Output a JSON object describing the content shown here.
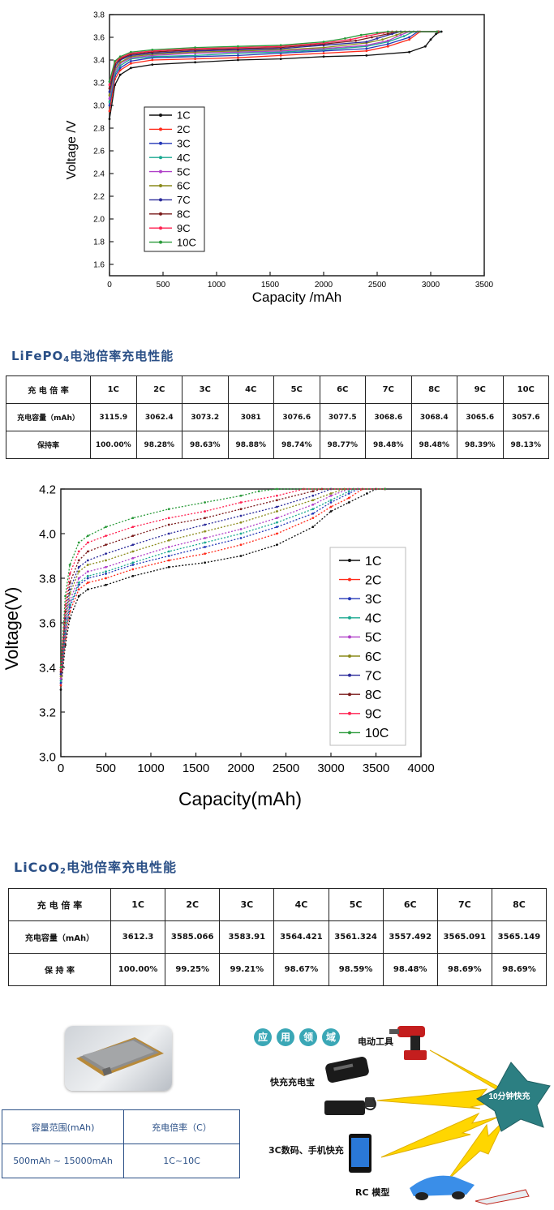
{
  "charts": {
    "lifepo4": {
      "xlabel": "Capacity /mAh",
      "ylabel": "Voltage /V",
      "xticks": [
        "0",
        "500",
        "1000",
        "1500",
        "2000",
        "2500",
        "3000",
        "3500"
      ],
      "yticks": [
        "1.6",
        "1.8",
        "2.0",
        "2.2",
        "2.4",
        "2.6",
        "2.8",
        "3.0",
        "3.2",
        "3.4",
        "3.6",
        "3.8"
      ],
      "legend": [
        "1C",
        "2C",
        "3C",
        "4C",
        "5C",
        "6C",
        "7C",
        "8C",
        "9C",
        "10C"
      ]
    },
    "licoo2": {
      "xlabel": "Capacity(mAh)",
      "ylabel": "Voltage(V)",
      "xticks": [
        "0",
        "500",
        "1000",
        "1500",
        "2000",
        "2500",
        "3000",
        "3500",
        "4000"
      ],
      "yticks": [
        "3.0",
        "3.2",
        "3.4",
        "3.6",
        "3.8",
        "4.0",
        "4.2"
      ],
      "legend": [
        "1C",
        "2C",
        "3C",
        "4C",
        "5C",
        "6C",
        "7C",
        "8C",
        "9C",
        "10C"
      ]
    }
  },
  "series_colors": [
    "#111111",
    "#ff2a1a",
    "#2438b8",
    "#1aa890",
    "#b040c8",
    "#8a8a1a",
    "#2a2a9a",
    "#7a1a1a",
    "#ff2050",
    "#2a9a3a"
  ],
  "chart_data": [
    {
      "type": "line",
      "xlabel": "Capacity /mAh",
      "ylabel": "Voltage /V",
      "xlim": [
        0,
        3500
      ],
      "ylim": [
        1.5,
        3.8
      ],
      "grid": false,
      "legend_position": "left",
      "series": [
        {
          "name": "1C",
          "x": [
            0,
            50,
            100,
            200,
            400,
            800,
            1200,
            1600,
            2000,
            2400,
            2800,
            2950,
            3000,
            3050,
            3100
          ],
          "y": [
            2.88,
            3.18,
            3.27,
            3.33,
            3.36,
            3.38,
            3.4,
            3.41,
            3.43,
            3.44,
            3.47,
            3.52,
            3.58,
            3.63,
            3.65
          ]
        },
        {
          "name": "2C",
          "x": [
            0,
            50,
            100,
            200,
            400,
            800,
            1200,
            1600,
            2000,
            2400,
            2600,
            2800,
            2900,
            3060
          ],
          "y": [
            2.95,
            3.23,
            3.31,
            3.37,
            3.4,
            3.41,
            3.42,
            3.44,
            3.46,
            3.48,
            3.52,
            3.58,
            3.65,
            3.65
          ]
        },
        {
          "name": "3C",
          "x": [
            0,
            50,
            100,
            200,
            400,
            800,
            1200,
            1600,
            2000,
            2400,
            2600,
            2800,
            2880,
            3070
          ],
          "y": [
            3.0,
            3.26,
            3.33,
            3.39,
            3.42,
            3.43,
            3.44,
            3.46,
            3.48,
            3.5,
            3.54,
            3.6,
            3.65,
            3.65
          ]
        },
        {
          "name": "4C",
          "x": [
            0,
            50,
            100,
            200,
            400,
            800,
            1200,
            1600,
            2000,
            2400,
            2600,
            2750,
            2840,
            3080
          ],
          "y": [
            3.03,
            3.28,
            3.35,
            3.41,
            3.43,
            3.44,
            3.46,
            3.47,
            3.49,
            3.52,
            3.56,
            3.61,
            3.65,
            3.65
          ]
        },
        {
          "name": "5C",
          "x": [
            0,
            50,
            100,
            200,
            400,
            800,
            1200,
            1600,
            2000,
            2400,
            2600,
            2720,
            2800,
            3075
          ],
          "y": [
            3.06,
            3.3,
            3.37,
            3.42,
            3.44,
            3.46,
            3.47,
            3.48,
            3.5,
            3.53,
            3.57,
            3.62,
            3.65,
            3.65
          ]
        },
        {
          "name": "6C",
          "x": [
            0,
            50,
            100,
            200,
            400,
            800,
            1200,
            1600,
            2000,
            2400,
            2550,
            2680,
            2760,
            3075
          ],
          "y": [
            3.09,
            3.32,
            3.38,
            3.43,
            3.45,
            3.47,
            3.48,
            3.49,
            3.51,
            3.55,
            3.58,
            3.62,
            3.65,
            3.65
          ]
        },
        {
          "name": "7C",
          "x": [
            0,
            50,
            100,
            200,
            400,
            800,
            1200,
            1600,
            2000,
            2400,
            2500,
            2640,
            2720,
            3070
          ],
          "y": [
            3.12,
            3.34,
            3.4,
            3.44,
            3.46,
            3.48,
            3.49,
            3.5,
            3.53,
            3.56,
            3.59,
            3.63,
            3.65,
            3.65
          ]
        },
        {
          "name": "8C",
          "x": [
            0,
            50,
            100,
            200,
            400,
            800,
            1200,
            1600,
            2000,
            2300,
            2450,
            2600,
            2680,
            3070
          ],
          "y": [
            3.15,
            3.36,
            3.41,
            3.45,
            3.47,
            3.49,
            3.5,
            3.51,
            3.54,
            3.57,
            3.6,
            3.63,
            3.65,
            3.65
          ]
        },
        {
          "name": "9C",
          "x": [
            0,
            50,
            100,
            200,
            400,
            800,
            1200,
            1600,
            2000,
            2250,
            2400,
            2560,
            2640,
            3065
          ],
          "y": [
            3.18,
            3.38,
            3.42,
            3.46,
            3.48,
            3.5,
            3.51,
            3.52,
            3.55,
            3.58,
            3.61,
            3.64,
            3.65,
            3.65
          ]
        },
        {
          "name": "10C",
          "x": [
            0,
            50,
            100,
            200,
            400,
            800,
            1200,
            1600,
            2000,
            2200,
            2350,
            2500,
            2600,
            3060
          ],
          "y": [
            3.21,
            3.39,
            3.43,
            3.47,
            3.49,
            3.51,
            3.52,
            3.53,
            3.56,
            3.59,
            3.62,
            3.64,
            3.65,
            3.65
          ]
        }
      ]
    },
    {
      "type": "table",
      "title": "LiFePO₄电池倍率充电性能",
      "headers": [
        "充 电 倍 率",
        "1C",
        "2C",
        "3C",
        "4C",
        "5C",
        "6C",
        "7C",
        "8C",
        "9C",
        "10C"
      ],
      "rows": [
        [
          "充电容量（mAh）",
          "3115.9",
          "3062.4",
          "3073.2",
          "3081",
          "3076.6",
          "3077.5",
          "3068.6",
          "3068.4",
          "3065.6",
          "3057.6"
        ],
        [
          "保持率",
          "100.00%",
          "98.28%",
          "98.63%",
          "98.88%",
          "98.74%",
          "98.77%",
          "98.48%",
          "98.48%",
          "98.39%",
          "98.13%"
        ]
      ]
    },
    {
      "type": "line",
      "xlabel": "Capacity(mAh)",
      "ylabel": "Voltage(V)",
      "xlim": [
        0,
        4000
      ],
      "ylim": [
        3.0,
        4.2
      ],
      "grid": false,
      "legend_position": "right",
      "series": [
        {
          "name": "1C",
          "x": [
            0,
            50,
            100,
            200,
            300,
            500,
            800,
            1200,
            1600,
            2000,
            2400,
            2800,
            3000,
            3200,
            3400,
            3500,
            3600
          ],
          "y": [
            3.3,
            3.5,
            3.62,
            3.72,
            3.75,
            3.77,
            3.81,
            3.85,
            3.87,
            3.9,
            3.95,
            4.03,
            4.1,
            4.14,
            4.18,
            4.2,
            4.2
          ]
        },
        {
          "name": "2C",
          "x": [
            0,
            50,
            100,
            200,
            300,
            500,
            800,
            1200,
            1600,
            2000,
            2400,
            2800,
            3000,
            3200,
            3350,
            3600
          ],
          "y": [
            3.32,
            3.53,
            3.65,
            3.75,
            3.78,
            3.8,
            3.84,
            3.88,
            3.91,
            3.95,
            4.0,
            4.07,
            4.12,
            4.16,
            4.2,
            4.2
          ]
        },
        {
          "name": "3C",
          "x": [
            0,
            50,
            100,
            200,
            300,
            500,
            800,
            1200,
            1600,
            2000,
            2400,
            2800,
            3000,
            3200,
            3300,
            3600
          ],
          "y": [
            3.33,
            3.55,
            3.67,
            3.77,
            3.8,
            3.82,
            3.86,
            3.9,
            3.94,
            3.98,
            4.03,
            4.09,
            4.14,
            4.18,
            4.2,
            4.2
          ]
        },
        {
          "name": "4C",
          "x": [
            0,
            50,
            100,
            200,
            300,
            500,
            800,
            1200,
            1600,
            2000,
            2400,
            2800,
            3000,
            3200,
            3250,
            3600
          ],
          "y": [
            3.34,
            3.56,
            3.68,
            3.78,
            3.81,
            3.83,
            3.87,
            3.92,
            3.96,
            4.0,
            4.05,
            4.11,
            4.15,
            4.19,
            4.2,
            4.2
          ]
        },
        {
          "name": "5C",
          "x": [
            0,
            50,
            100,
            200,
            300,
            500,
            800,
            1200,
            1600,
            2000,
            2400,
            2800,
            3000,
            3200,
            3600
          ],
          "y": [
            3.35,
            3.58,
            3.7,
            3.8,
            3.83,
            3.85,
            3.89,
            3.94,
            3.98,
            4.02,
            4.07,
            4.13,
            4.17,
            4.2,
            4.2
          ]
        },
        {
          "name": "6C",
          "x": [
            0,
            50,
            100,
            200,
            300,
            500,
            800,
            1200,
            1600,
            2000,
            2400,
            2800,
            3000,
            3150,
            3600
          ],
          "y": [
            3.36,
            3.6,
            3.73,
            3.83,
            3.86,
            3.88,
            3.92,
            3.97,
            4.01,
            4.05,
            4.1,
            4.15,
            4.18,
            4.2,
            4.2
          ]
        },
        {
          "name": "7C",
          "x": [
            0,
            50,
            100,
            200,
            300,
            500,
            800,
            1200,
            1600,
            2000,
            2400,
            2800,
            3000,
            3600
          ],
          "y": [
            3.37,
            3.62,
            3.75,
            3.85,
            3.88,
            3.91,
            3.95,
            4.0,
            4.04,
            4.08,
            4.12,
            4.17,
            4.2,
            4.2
          ]
        },
        {
          "name": "8C",
          "x": [
            0,
            50,
            100,
            200,
            300,
            500,
            800,
            1200,
            1600,
            2000,
            2400,
            2800,
            2900,
            3600
          ],
          "y": [
            3.38,
            3.65,
            3.78,
            3.88,
            3.92,
            3.95,
            3.99,
            4.04,
            4.07,
            4.11,
            4.15,
            4.19,
            4.2,
            4.2
          ]
        },
        {
          "name": "9C",
          "x": [
            0,
            50,
            100,
            200,
            300,
            500,
            800,
            1200,
            1600,
            2000,
            2400,
            2700,
            3600
          ],
          "y": [
            3.39,
            3.68,
            3.82,
            3.92,
            3.96,
            3.99,
            4.03,
            4.07,
            4.1,
            4.14,
            4.17,
            4.2,
            4.2
          ]
        },
        {
          "name": "10C",
          "x": [
            0,
            50,
            100,
            200,
            300,
            500,
            800,
            1200,
            1600,
            2000,
            2200,
            2400,
            3600
          ],
          "y": [
            3.4,
            3.72,
            3.86,
            3.96,
            3.99,
            4.03,
            4.07,
            4.11,
            4.14,
            4.17,
            4.19,
            4.2,
            4.2
          ]
        }
      ]
    },
    {
      "type": "table",
      "title": "LiCoO₂电池倍率充电性能",
      "headers": [
        "充 电 倍 率",
        "1C",
        "2C",
        "3C",
        "4C",
        "5C",
        "6C",
        "7C",
        "8C"
      ],
      "rows": [
        [
          "充电容量（mAh）",
          "3612.3",
          "3585.066",
          "3583.91",
          "3564.421",
          "3561.324",
          "3557.492",
          "3565.091",
          "3565.149"
        ],
        [
          "保 持 率",
          "100.00%",
          "99.25%",
          "99.21%",
          "98.67%",
          "98.59%",
          "98.48%",
          "98.69%",
          "98.69%"
        ]
      ]
    }
  ],
  "titles": {
    "lifepo4_main": "LiFeP",
    "lifepo4_o": "O",
    "lifepo4_sub": "4",
    "lifepo4_rest": "电池倍率充电性能",
    "licoo2_main": "LiCoO",
    "licoo2_sub": "2",
    "licoo2_rest": "电池倍率充电性能"
  },
  "table1": {
    "headers": [
      "充 电 倍 率",
      "1C",
      "2C",
      "3C",
      "4C",
      "5C",
      "6C",
      "7C",
      "8C",
      "9C",
      "10C"
    ],
    "row_capacity": [
      "充电容量（mAh）",
      "3115.9",
      "3062.4",
      "3073.2",
      "3081",
      "3076.6",
      "3077.5",
      "3068.6",
      "3068.4",
      "3065.6",
      "3057.6"
    ],
    "row_retention": [
      "保持率",
      "100.00%",
      "98.28%",
      "98.63%",
      "98.88%",
      "98.74%",
      "98.77%",
      "98.48%",
      "98.48%",
      "98.39%",
      "98.13%"
    ]
  },
  "table2": {
    "headers": [
      "充 电 倍 率",
      "1C",
      "2C",
      "3C",
      "4C",
      "5C",
      "6C",
      "7C",
      "8C"
    ],
    "row_capacity": [
      "充电容量（mAh）",
      "3612.3",
      "3585.066",
      "3583.91",
      "3564.421",
      "3561.324",
      "3557.492",
      "3565.091",
      "3565.149"
    ],
    "row_retention": [
      "保 持 率",
      "100.00%",
      "99.25%",
      "99.21%",
      "98.67%",
      "98.59%",
      "98.48%",
      "98.69%",
      "98.69%"
    ]
  },
  "capacity_table": {
    "header_range": "容量范围(mAh)",
    "header_rate": "充电倍率（C）",
    "value_range": "500mAh ~ 15000mAh",
    "value_rate": "1C~10C"
  },
  "applications": {
    "title_chars": [
      "应",
      "用",
      "领",
      "域"
    ],
    "power_tool": "电动工具",
    "power_bank": "快充充电宝",
    "phone": "3C数码、手机快充",
    "rc": "RC 模型",
    "fast_charge": "10分钟快充"
  }
}
